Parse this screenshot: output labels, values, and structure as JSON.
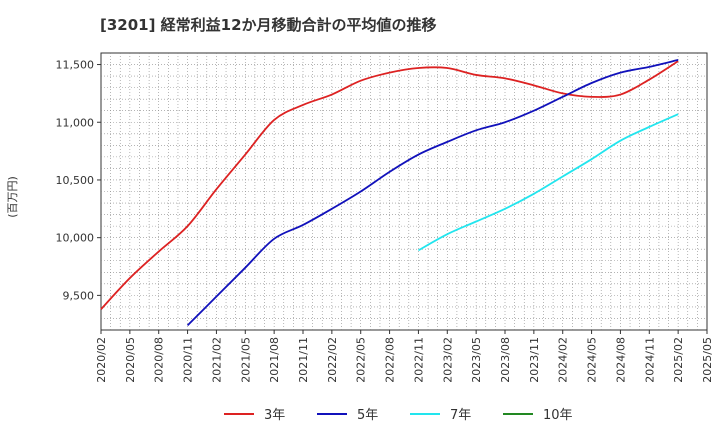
{
  "chart_data": {
    "type": "line",
    "title": "[3201]  経常利益12か月移動合計の平均値の推移",
    "ylabel": "(百万円)",
    "xlabel": "",
    "ylim": [
      9200,
      11600
    ],
    "yticks": [
      9500,
      10000,
      10500,
      11000,
      11500
    ],
    "ytick_labels": [
      "9,500",
      "10,000",
      "10,500",
      "11,000",
      "11,500"
    ],
    "xticks": [
      "2020/02",
      "2020/05",
      "2020/08",
      "2020/11",
      "2021/02",
      "2021/05",
      "2021/08",
      "2021/11",
      "2022/02",
      "2022/05",
      "2022/08",
      "2022/11",
      "2023/02",
      "2023/05",
      "2023/08",
      "2023/11",
      "2024/02",
      "2024/05",
      "2024/08",
      "2024/11",
      "2025/02",
      "2025/05"
    ],
    "grid": true,
    "legend_position": "bottom",
    "series": [
      {
        "name": "3年",
        "color": "#dd2222",
        "points": [
          [
            "2020/02",
            9380
          ],
          [
            "2020/05",
            9650
          ],
          [
            "2020/08",
            9880
          ],
          [
            "2020/11",
            10100
          ],
          [
            "2021/02",
            10420
          ],
          [
            "2021/05",
            10720
          ],
          [
            "2021/08",
            11020
          ],
          [
            "2021/11",
            11150
          ],
          [
            "2022/02",
            11240
          ],
          [
            "2022/05",
            11360
          ],
          [
            "2022/08",
            11430
          ],
          [
            "2022/11",
            11470
          ],
          [
            "2023/02",
            11470
          ],
          [
            "2023/05",
            11410
          ],
          [
            "2023/08",
            11380
          ],
          [
            "2023/11",
            11320
          ],
          [
            "2024/02",
            11250
          ],
          [
            "2024/05",
            11220
          ],
          [
            "2024/08",
            11240
          ],
          [
            "2024/11",
            11370
          ],
          [
            "2025/02",
            11530
          ]
        ]
      },
      {
        "name": "5年",
        "color": "#1111bb",
        "points": [
          [
            "2020/11",
            9240
          ],
          [
            "2021/02",
            9490
          ],
          [
            "2021/05",
            9740
          ],
          [
            "2021/08",
            9990
          ],
          [
            "2021/11",
            10110
          ],
          [
            "2022/02",
            10250
          ],
          [
            "2022/05",
            10400
          ],
          [
            "2022/08",
            10570
          ],
          [
            "2022/11",
            10720
          ],
          [
            "2023/02",
            10830
          ],
          [
            "2023/05",
            10930
          ],
          [
            "2023/08",
            11000
          ],
          [
            "2023/11",
            11100
          ],
          [
            "2024/02",
            11220
          ],
          [
            "2024/05",
            11340
          ],
          [
            "2024/08",
            11430
          ],
          [
            "2024/11",
            11480
          ],
          [
            "2025/02",
            11540
          ]
        ]
      },
      {
        "name": "7年",
        "color": "#22e5ee",
        "points": [
          [
            "2022/11",
            9890
          ],
          [
            "2023/02",
            10030
          ],
          [
            "2023/05",
            10140
          ],
          [
            "2023/08",
            10250
          ],
          [
            "2023/11",
            10380
          ],
          [
            "2024/02",
            10530
          ],
          [
            "2024/05",
            10680
          ],
          [
            "2024/08",
            10840
          ],
          [
            "2024/11",
            10960
          ],
          [
            "2025/02",
            11070
          ]
        ]
      },
      {
        "name": "10年",
        "color": "#228822",
        "points": []
      }
    ]
  }
}
